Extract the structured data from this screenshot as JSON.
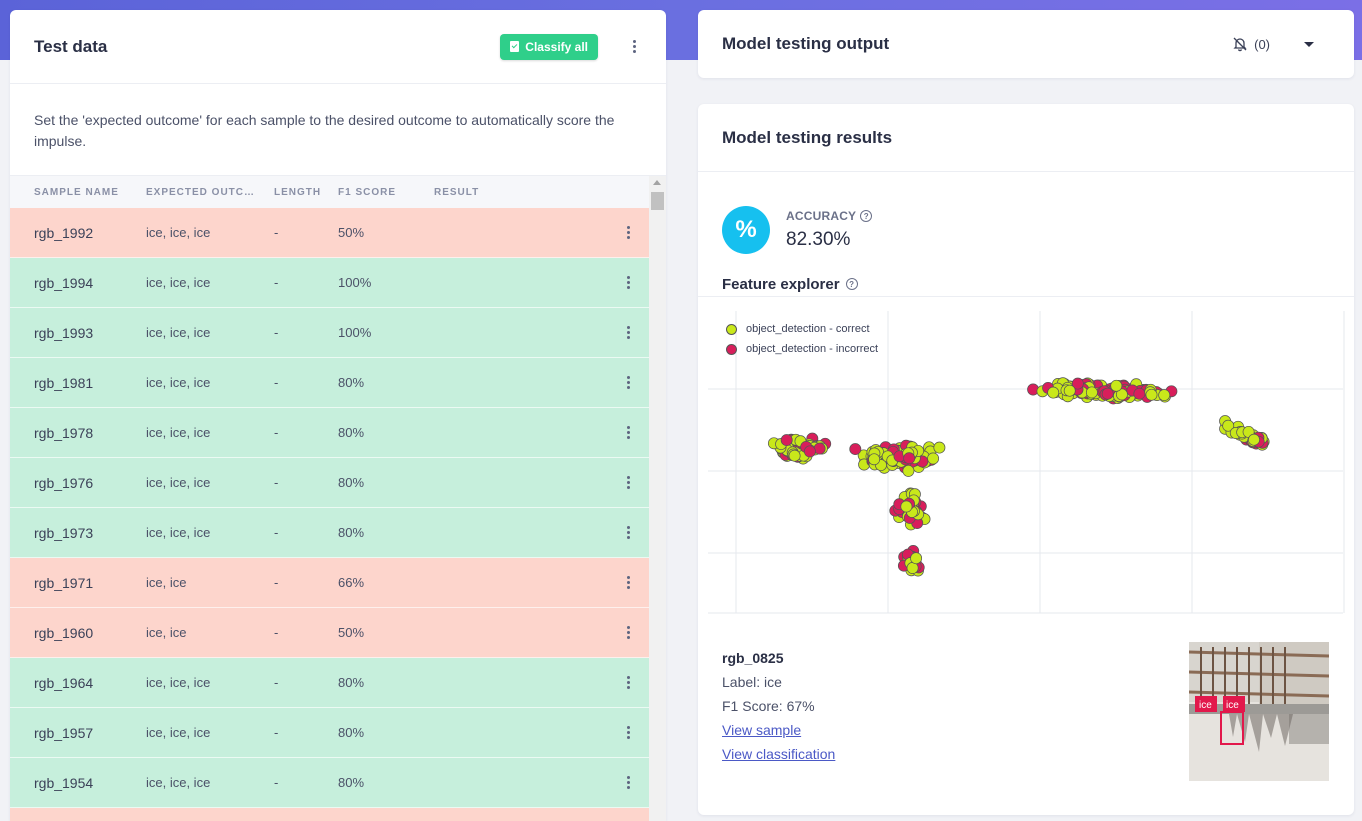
{
  "colors": {
    "incorrect_row": "#fdd5cc",
    "correct_row": "#c6efdc",
    "correct_dot": "#c9e81a",
    "incorrect_dot": "#d81e5b",
    "accent": "#16c0ef",
    "classify_button": "#2fcf8a"
  },
  "left": {
    "title": "Test data",
    "classify_label": "Classify all",
    "intro": "Set the 'expected outcome' for each sample to the desired outcome to automatically score the impulse.",
    "columns": [
      "SAMPLE NAME",
      "EXPECTED OUTC…",
      "LENGTH",
      "F1 SCORE",
      "RESULT"
    ],
    "rows": [
      {
        "name": "rgb_1992",
        "expected": "ice, ice, ice",
        "length": "-",
        "f1": "50%",
        "status": "incorrect"
      },
      {
        "name": "rgb_1994",
        "expected": "ice, ice, ice",
        "length": "-",
        "f1": "100%",
        "status": "correct"
      },
      {
        "name": "rgb_1993",
        "expected": "ice, ice, ice",
        "length": "-",
        "f1": "100%",
        "status": "correct"
      },
      {
        "name": "rgb_1981",
        "expected": "ice, ice, ice",
        "length": "-",
        "f1": "80%",
        "status": "correct"
      },
      {
        "name": "rgb_1978",
        "expected": "ice, ice, ice",
        "length": "-",
        "f1": "80%",
        "status": "correct"
      },
      {
        "name": "rgb_1976",
        "expected": "ice, ice, ice",
        "length": "-",
        "f1": "80%",
        "status": "correct"
      },
      {
        "name": "rgb_1973",
        "expected": "ice, ice, ice",
        "length": "-",
        "f1": "80%",
        "status": "correct"
      },
      {
        "name": "rgb_1971",
        "expected": "ice, ice",
        "length": "-",
        "f1": "66%",
        "status": "incorrect"
      },
      {
        "name": "rgb_1960",
        "expected": "ice, ice",
        "length": "-",
        "f1": "50%",
        "status": "incorrect"
      },
      {
        "name": "rgb_1964",
        "expected": "ice, ice, ice",
        "length": "-",
        "f1": "80%",
        "status": "correct"
      },
      {
        "name": "rgb_1957",
        "expected": "ice, ice, ice",
        "length": "-",
        "f1": "80%",
        "status": "correct"
      },
      {
        "name": "rgb_1954",
        "expected": "ice, ice, ice",
        "length": "-",
        "f1": "80%",
        "status": "correct"
      },
      {
        "name": "",
        "expected": "",
        "length": "",
        "f1": "",
        "status": "incorrect"
      }
    ]
  },
  "output": {
    "title": "Model testing output",
    "notification_count": "(0)"
  },
  "results": {
    "title": "Model testing results",
    "accuracy_label": "ACCURACY",
    "accuracy_value": "82.30%",
    "accuracy_icon": "%",
    "feature_explorer_title": "Feature explorer",
    "legend": [
      "object_detection - correct",
      "object_detection - incorrect"
    ],
    "selected_sample": {
      "name": "rgb_0825",
      "label": "Label: ice",
      "f1": "F1 Score: 67%",
      "view_sample": "View sample",
      "view_classification": "View classification",
      "box_labels": [
        "ice",
        "ice"
      ]
    }
  },
  "chart_data": {
    "type": "scatter",
    "title": "Feature explorer",
    "series": [
      {
        "name": "object_detection - correct",
        "color": "#c9e81a"
      },
      {
        "name": "object_detection - incorrect",
        "color": "#d81e5b"
      }
    ],
    "clusters": [
      {
        "center": [
          0.62,
          0.33
        ],
        "spread": [
          0.13,
          0.03
        ]
      },
      {
        "center": [
          0.14,
          0.52
        ],
        "spread": [
          0.05,
          0.04
        ]
      },
      {
        "center": [
          0.3,
          0.55
        ],
        "spread": [
          0.08,
          0.05
        ]
      },
      {
        "center": [
          0.32,
          0.72
        ],
        "spread": [
          0.03,
          0.07
        ]
      },
      {
        "center": [
          0.32,
          0.9
        ],
        "spread": [
          0.015,
          0.05
        ]
      },
      {
        "center": [
          0.85,
          0.48
        ],
        "spread": [
          0.05,
          0.025
        ]
      }
    ],
    "grid": true,
    "legend_position": "top-left"
  }
}
